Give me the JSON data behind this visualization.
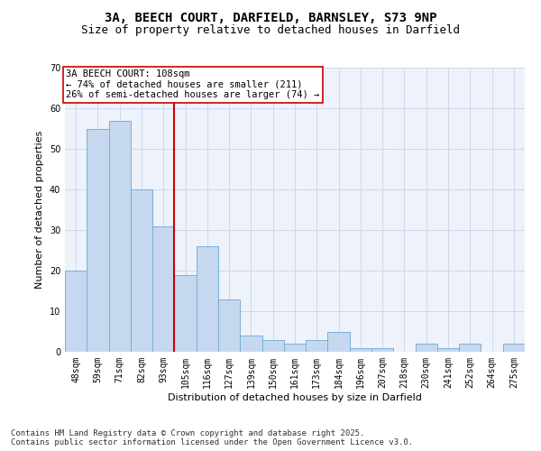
{
  "title_line1": "3A, BEECH COURT, DARFIELD, BARNSLEY, S73 9NP",
  "title_line2": "Size of property relative to detached houses in Darfield",
  "xlabel": "Distribution of detached houses by size in Darfield",
  "ylabel": "Number of detached properties",
  "categories": [
    "48sqm",
    "59sqm",
    "71sqm",
    "82sqm",
    "93sqm",
    "105sqm",
    "116sqm",
    "127sqm",
    "139sqm",
    "150sqm",
    "161sqm",
    "173sqm",
    "184sqm",
    "196sqm",
    "207sqm",
    "218sqm",
    "230sqm",
    "241sqm",
    "252sqm",
    "264sqm",
    "275sqm"
  ],
  "values": [
    20,
    55,
    57,
    40,
    31,
    19,
    26,
    13,
    4,
    3,
    2,
    3,
    5,
    1,
    1,
    0,
    2,
    1,
    2,
    0,
    2
  ],
  "bar_color": "#c5d8f0",
  "bar_edge_color": "#7bafd4",
  "vline_index": 4.5,
  "vline_color": "#cc0000",
  "annotation_text": "3A BEECH COURT: 108sqm\n← 74% of detached houses are smaller (211)\n26% of semi-detached houses are larger (74) →",
  "annotation_box_color": "#cc0000",
  "annotation_box_fill": "#ffffff",
  "ylim": [
    0,
    70
  ],
  "yticks": [
    0,
    10,
    20,
    30,
    40,
    50,
    60,
    70
  ],
  "grid_color": "#d0d8e8",
  "bg_color": "#eef2fb",
  "footer_line1": "Contains HM Land Registry data © Crown copyright and database right 2025.",
  "footer_line2": "Contains public sector information licensed under the Open Government Licence v3.0.",
  "title_fontsize": 10,
  "subtitle_fontsize": 9,
  "axis_label_fontsize": 8,
  "tick_fontsize": 7,
  "annotation_fontsize": 7.5,
  "footer_fontsize": 6.5
}
